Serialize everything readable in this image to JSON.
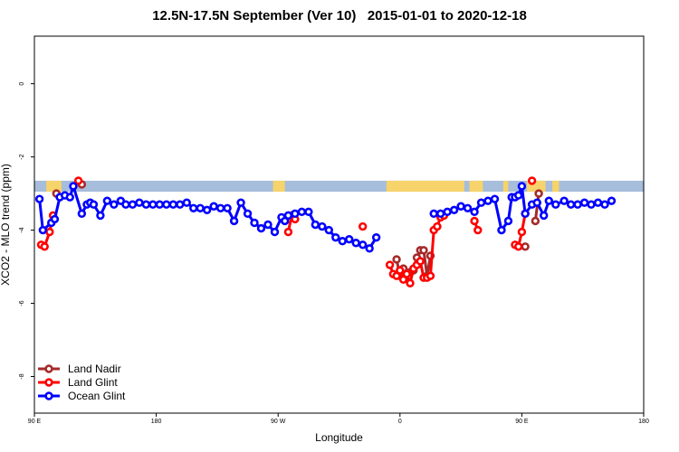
{
  "chart_data": {
    "type": "line",
    "title": "12.5N-17.5N September (Ver 10)   2015-01-01 to 2020-12-18",
    "xlabel": "Longitude",
    "ylabel": "XCO2 - MLO trend (ppm)",
    "xlim": [
      90,
      450
    ],
    "ylim": [
      1.3,
      -9.0
    ],
    "x_ticks": [
      {
        "value": 90,
        "label": "90 E"
      },
      {
        "value": 162,
        "label": "180"
      },
      {
        "value": 234,
        "label": "90 W"
      },
      {
        "value": 306,
        "label": "0"
      },
      {
        "value": 378,
        "label": "90 E"
      },
      {
        "value": 450,
        "label": "180"
      }
    ],
    "y_ticks": [
      {
        "value": 0,
        "label": "0"
      },
      {
        "value": -2,
        "label": "-2"
      },
      {
        "value": -4,
        "label": "-4"
      },
      {
        "value": -6,
        "label": "-6"
      },
      {
        "value": -8,
        "label": "-8"
      }
    ],
    "legend_position": "bottom-left",
    "band": {
      "y_top": -2.65,
      "y_bottom": -2.95,
      "ocean_color": "#a6bddb",
      "land_color": "#f6d36b"
    },
    "land_spans": [
      [
        97,
        106
      ],
      [
        231,
        238
      ],
      [
        298,
        344
      ],
      [
        347,
        355
      ],
      [
        367,
        370
      ],
      [
        381,
        392
      ],
      [
        396,
        400
      ]
    ],
    "series": [
      {
        "name": "Land Nadir",
        "color": "#a52a2a",
        "x": [
          94,
          96,
          99,
          101,
          103,
          105,
          113,
          116,
          118,
          128,
          135,
          240,
          242,
          244,
          246,
          280,
          284,
          286,
          288,
          290,
          292,
          294,
          296,
          300,
          302,
          304,
          306,
          308,
          310,
          312,
          314,
          316,
          318,
          320,
          322,
          324,
          326,
          328,
          330,
          332,
          334,
          338,
          340,
          344,
          346,
          350,
          352,
          354,
          358,
          362,
          364,
          366,
          374,
          376,
          378,
          380,
          382,
          384,
          386,
          388,
          390,
          392,
          394,
          398,
          402,
          404
        ],
        "y": [
          null,
          null,
          null,
          null,
          -3.0,
          null,
          null,
          null,
          -2.75,
          null,
          null,
          null,
          null,
          null,
          null,
          null,
          null,
          null,
          null,
          null,
          null,
          null,
          null,
          null,
          null,
          -4.8,
          -5.25,
          -5.05,
          -5.2,
          -5.15,
          -5.1,
          -4.75,
          -4.55,
          -4.55,
          -5.25,
          -4.7,
          null,
          null,
          null,
          null,
          null,
          null,
          null,
          null,
          null,
          null,
          null,
          null,
          null,
          null,
          null,
          null,
          null,
          null,
          null,
          -4.45,
          null,
          null,
          -3.75,
          -3.0,
          null,
          null,
          null,
          null,
          null,
          null
        ]
      },
      {
        "name": "Land Glint",
        "color": "#ff0000",
        "x": [
          94,
          96,
          99,
          101,
          103,
          105,
          113,
          116,
          118,
          128,
          135,
          240,
          242,
          244,
          246,
          280,
          284,
          286,
          288,
          290,
          292,
          294,
          296,
          300,
          302,
          304,
          306,
          308,
          310,
          312,
          314,
          316,
          318,
          320,
          322,
          324,
          326,
          328,
          330,
          332,
          334,
          338,
          340,
          344,
          346,
          350,
          352,
          354,
          358,
          362,
          364,
          366,
          374,
          376,
          378,
          380,
          382,
          384,
          386,
          388,
          390,
          392,
          394,
          398,
          402,
          404
        ],
        "y": [
          -4.4,
          -4.45,
          -4.05,
          -3.6,
          null,
          null,
          null,
          -2.65,
          null,
          null,
          null,
          -4.05,
          -3.6,
          -3.7,
          null,
          null,
          -3.9,
          null,
          null,
          null,
          null,
          null,
          null,
          -4.95,
          -5.2,
          -5.25,
          -5.1,
          -5.35,
          -5.2,
          -5.45,
          -5.05,
          -4.95,
          -4.85,
          -5.3,
          -5.3,
          -5.25,
          -4.0,
          -3.9,
          -3.65,
          -3.6,
          null,
          null,
          null,
          null,
          null,
          -3.75,
          -4.0,
          null,
          null,
          null,
          null,
          null,
          -4.4,
          -4.45,
          -4.05,
          -3.55,
          null,
          -2.65,
          null,
          null,
          null,
          null,
          null,
          null,
          null,
          null
        ]
      },
      {
        "name": "Ocean Glint",
        "color": "#0000ff",
        "x": [
          93,
          95,
          100,
          102,
          105,
          108,
          111,
          113,
          118,
          121,
          123,
          125,
          129,
          133,
          137,
          141,
          144,
          148,
          152,
          156,
          160,
          164,
          168,
          172,
          176,
          180,
          184,
          188,
          192,
          196,
          200,
          204,
          208,
          212,
          216,
          220,
          224,
          228,
          232,
          236,
          238,
          240,
          244,
          248,
          252,
          256,
          260,
          264,
          268,
          272,
          276,
          280,
          284,
          288,
          292,
          294,
          302,
          326,
          330,
          334,
          338,
          342,
          346,
          350,
          354,
          358,
          362,
          366,
          370,
          372,
          374,
          376,
          378,
          380,
          384,
          387,
          391,
          394,
          398,
          403,
          407,
          411,
          415,
          419,
          423,
          427,
          431,
          435,
          439,
          443,
          447
        ],
        "y": [
          -3.15,
          -4.0,
          -3.8,
          -3.7,
          -3.1,
          -3.05,
          -3.1,
          -2.8,
          -3.55,
          -3.3,
          -3.25,
          -3.3,
          -3.6,
          -3.2,
          -3.3,
          -3.2,
          -3.3,
          -3.3,
          -3.25,
          -3.3,
          -3.3,
          -3.3,
          -3.3,
          -3.3,
          -3.3,
          -3.25,
          -3.4,
          -3.4,
          -3.45,
          -3.35,
          -3.4,
          -3.4,
          -3.75,
          -3.25,
          -3.55,
          -3.8,
          -3.95,
          -3.85,
          -4.05,
          -3.65,
          -3.75,
          -3.6,
          -3.55,
          -3.5,
          -3.5,
          -3.85,
          -3.9,
          -4.0,
          -4.2,
          -4.3,
          -4.25,
          -4.35,
          -4.4,
          -4.5,
          -4.2,
          null,
          null,
          -3.55,
          -3.55,
          -3.5,
          -3.45,
          -3.35,
          -3.4,
          -3.5,
          -3.25,
          -3.2,
          -3.15,
          -4.0,
          -3.75,
          -3.1,
          -3.1,
          -3.05,
          -2.8,
          -3.55,
          -3.3,
          -3.25,
          -3.6,
          -3.2,
          -3.3,
          -3.2,
          -3.3,
          -3.3,
          -3.25,
          -3.3,
          -3.25,
          -3.3,
          -3.2,
          null,
          null,
          null,
          null
        ]
      }
    ]
  }
}
